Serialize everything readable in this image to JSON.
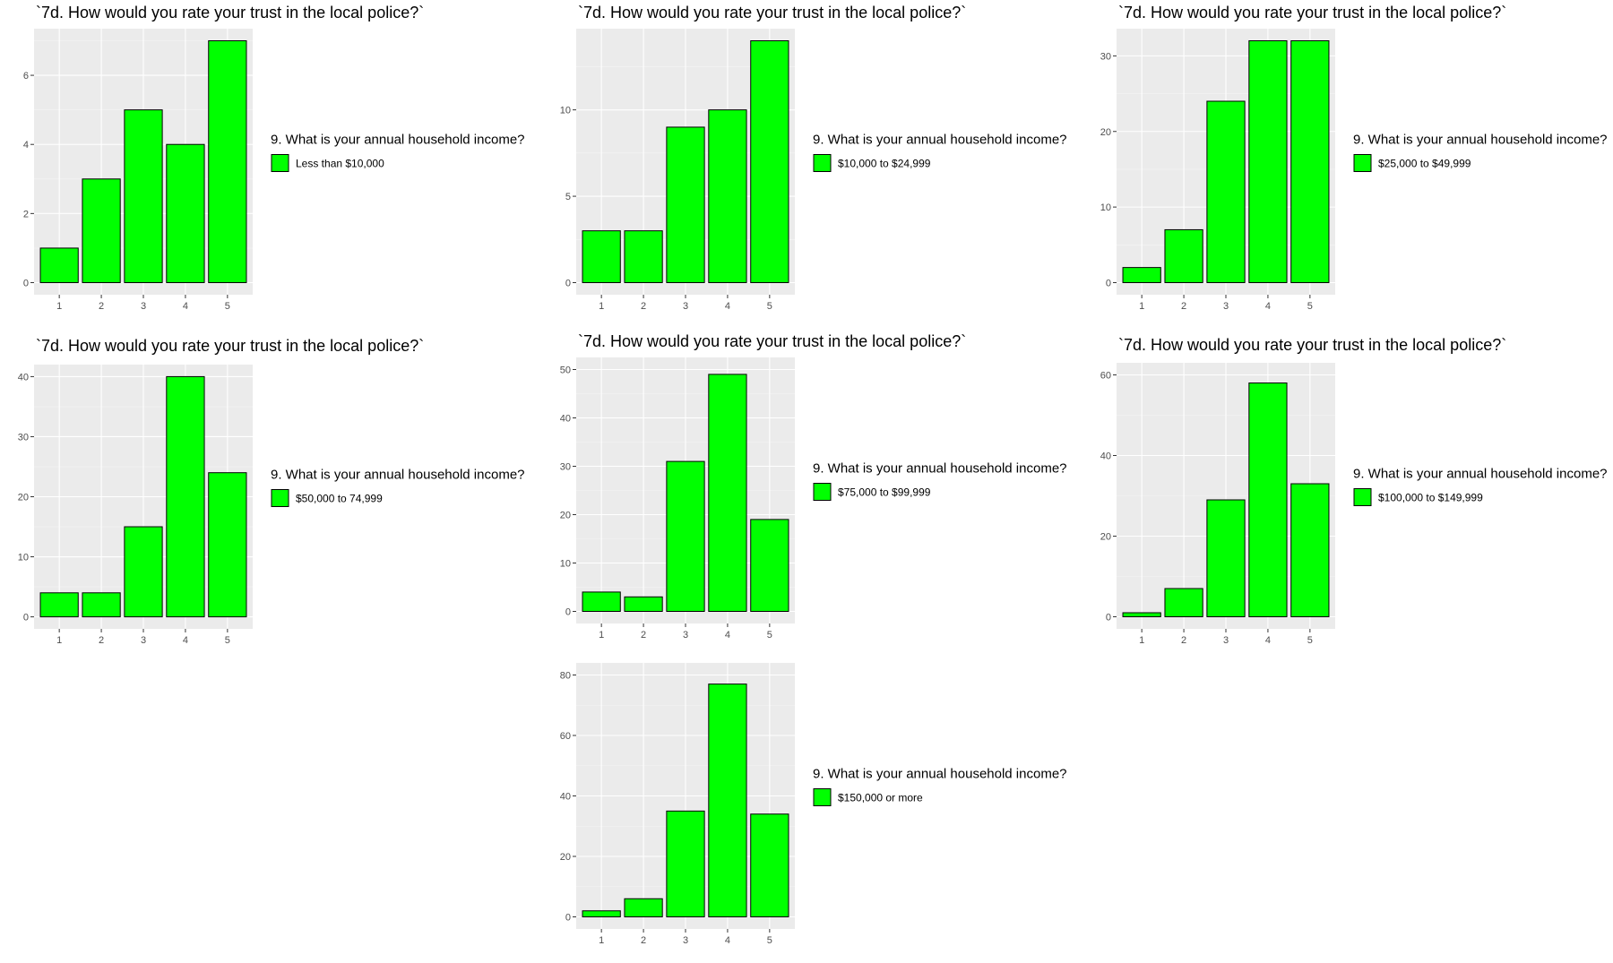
{
  "chart_data": [
    {
      "type": "bar",
      "title": "`7d. How would you rate your trust in the local police?`",
      "xlabel": "",
      "ylabel": "",
      "categories": [
        "1",
        "2",
        "3",
        "4",
        "5"
      ],
      "values": [
        1,
        3,
        5,
        4,
        7
      ],
      "ylim": [
        0,
        7
      ],
      "yticks": [
        "0",
        "2",
        "4",
        "6"
      ],
      "legend": {
        "title": "9. What is your annual household income?",
        "label": "Less than $10,000",
        "position": "right"
      },
      "bar_color": "#00ff00",
      "grid": true
    },
    {
      "type": "bar",
      "title": "`7d. How would you rate your trust in the local police?`",
      "xlabel": "",
      "ylabel": "",
      "categories": [
        "1",
        "2",
        "3",
        "4",
        "5"
      ],
      "values": [
        3,
        3,
        9,
        10,
        14
      ],
      "ylim": [
        0,
        14
      ],
      "yticks": [
        "0",
        "5",
        "10"
      ],
      "legend": {
        "title": "9. What is your annual household income?",
        "label": "$10,000 to $24,999",
        "position": "right"
      },
      "bar_color": "#00ff00",
      "grid": true
    },
    {
      "type": "bar",
      "title": "`7d. How would you rate your trust in the local police?`",
      "xlabel": "",
      "ylabel": "",
      "categories": [
        "1",
        "2",
        "3",
        "4",
        "5"
      ],
      "values": [
        2,
        7,
        24,
        32,
        32
      ],
      "ylim": [
        0,
        32
      ],
      "yticks": [
        "0",
        "10",
        "20",
        "30"
      ],
      "legend": {
        "title": "9. What is your annual household income?",
        "label": "$25,000 to $49,999",
        "position": "right"
      },
      "bar_color": "#00ff00",
      "grid": true
    },
    {
      "type": "bar",
      "title": "`7d. How would you rate your trust in the local police?`",
      "xlabel": "",
      "ylabel": "",
      "categories": [
        "1",
        "2",
        "3",
        "4",
        "5"
      ],
      "values": [
        4,
        4,
        15,
        40,
        24
      ],
      "ylim": [
        0,
        40
      ],
      "yticks": [
        "0",
        "10",
        "20",
        "30",
        "40"
      ],
      "legend": {
        "title": "9. What is your annual household income?",
        "label": "$50,000 to 74,999",
        "position": "right"
      },
      "bar_color": "#00ff00",
      "grid": true
    },
    {
      "type": "bar",
      "title": "`7d. How would you rate your trust in the local police?`",
      "xlabel": "",
      "ylabel": "",
      "categories": [
        "1",
        "2",
        "3",
        "4",
        "5"
      ],
      "values": [
        4,
        3,
        31,
        49,
        19
      ],
      "ylim": [
        0,
        50
      ],
      "yticks": [
        "0",
        "10",
        "20",
        "30",
        "40",
        "50"
      ],
      "legend": {
        "title": "9. What is your annual household income?",
        "label": "$75,000 to $99,999",
        "position": "right"
      },
      "bar_color": "#00ff00",
      "grid": true
    },
    {
      "type": "bar",
      "title": "`7d. How would you rate your trust in the local police?`",
      "xlabel": "",
      "ylabel": "",
      "categories": [
        "1",
        "2",
        "3",
        "4",
        "5"
      ],
      "values": [
        1,
        7,
        29,
        58,
        33
      ],
      "ylim": [
        0,
        60
      ],
      "yticks": [
        "0",
        "20",
        "40",
        "60"
      ],
      "legend": {
        "title": "9. What is your annual household income?",
        "label": "$100,000 to $149,999",
        "position": "right"
      },
      "bar_color": "#00ff00",
      "grid": true
    },
    {
      "type": "bar",
      "title": "",
      "xlabel": "",
      "ylabel": "",
      "categories": [
        "1",
        "2",
        "3",
        "4",
        "5"
      ],
      "values": [
        2,
        6,
        35,
        77,
        34
      ],
      "ylim": [
        0,
        80
      ],
      "yticks": [
        "0",
        "20",
        "40",
        "60",
        "80"
      ],
      "legend": {
        "title": "9. What is your annual household income?",
        "label": "$150,000 or more",
        "position": "right"
      },
      "bar_color": "#00ff00",
      "grid": true
    }
  ]
}
